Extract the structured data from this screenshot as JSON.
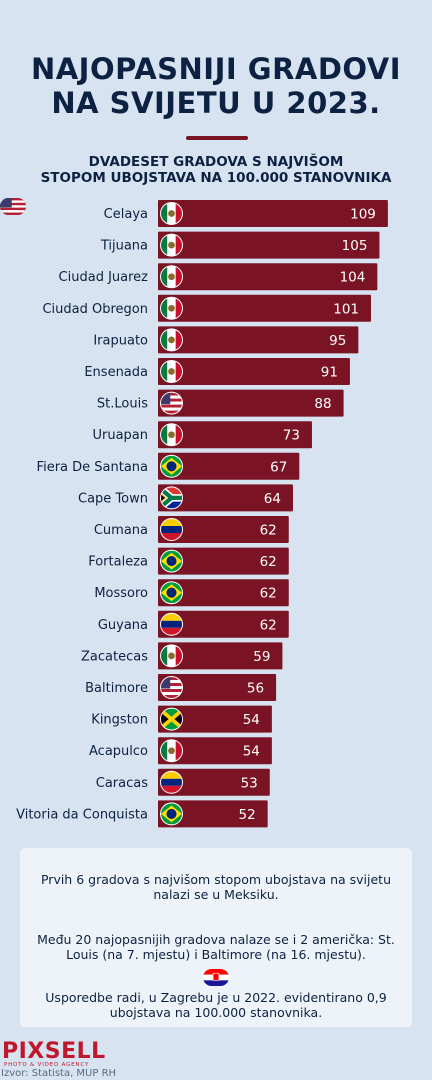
{
  "title_line1": "NAJOPASNIJI GRADOVI",
  "title_line2": "NA SVIJETU U 2023.",
  "subtitle_line1": "DVADESET GRADOVA S NAJVIŠOM",
  "subtitle_line2": "STOPOM UBOJSTAVA NA 100.000 STANOVNIKA",
  "colors": {
    "bar": "#7a1425",
    "background": "#d7e3f0",
    "text": "#0d2142"
  },
  "chart_data": {
    "type": "bar",
    "orientation": "horizontal",
    "categories": [
      "Celaya",
      "Tijuana",
      "Ciudad Juarez",
      "Ciudad Obregon",
      "Irapuato",
      "Ensenada",
      "St.Louis",
      "Uruapan",
      "Fiera De Santana",
      "Cape Town",
      "Cumana",
      "Fortaleza",
      "Mossoro",
      "Guyana",
      "Zacatecas",
      "Baltimore",
      "Kingston",
      "Acapulco",
      "Caracas",
      "Vitoria da Conquista"
    ],
    "values": [
      109,
      105,
      104,
      101,
      95,
      91,
      88,
      73,
      67,
      64,
      62,
      62,
      62,
      62,
      59,
      56,
      54,
      54,
      53,
      52
    ],
    "flags": [
      "mexico-flag",
      "mexico-flag",
      "mexico-flag",
      "mexico-flag",
      "mexico-flag",
      "mexico-flag",
      "usa-flag",
      "mexico-flag",
      "brazil-flag",
      "south-africa-flag",
      "venezuela-flag",
      "brazil-flag",
      "brazil-flag",
      "venezuela-flag",
      "mexico-flag",
      "usa-flag",
      "jamaica-flag",
      "mexico-flag",
      "venezuela-flag",
      "brazil-flag"
    ],
    "title": "DVADESET GRADOVA S NAJVIŠOM STOPOM UBOJSTAVA NA 100.000 STANOVNIKA",
    "xlabel": "",
    "ylabel": ""
  },
  "info": {
    "item1_line1": "Prvih 6 gradova s najvišom stopom ubojstava na svijetu",
    "item1_line2": "nalazi se u Meksiku.",
    "item1_flag": "mexico-flag",
    "item2_line1": "Među 20 najopasnijih gradova nalaze se i 2 američka: St.",
    "item2_line2": "Louis (na 7. mjestu) i Baltimore (na 16. mjestu).",
    "item2_flag": "usa-flag",
    "item3_line1": "Usporedbe radi, u Zagrebu je u 2022. evidentirano 0,9",
    "item3_line2": "ubojstava na 100.000 stanovnika.",
    "item3_flag": "croatia-flag"
  },
  "logo": "PIXSELL",
  "logo_tagline": "PHOTO & VIDEO AGENCY",
  "source": "Izvor: Statista, MUP RH"
}
